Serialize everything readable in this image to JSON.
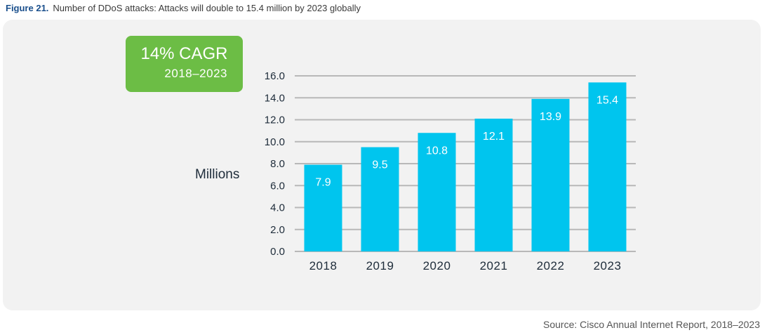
{
  "figure": {
    "label": "Figure 21.",
    "title": "Number of DDoS attacks: Attacks will double to 15.4 million by 2023 globally"
  },
  "callout": {
    "main": "14% CAGR",
    "sub": "2018–2023",
    "color": "#6cbd45"
  },
  "source": "Source: Cisco Annual Internet Report, 2018–2023",
  "chart_data": {
    "type": "bar",
    "title": "Number of DDoS attacks: Attacks will double to 15.4 million by 2023 globally",
    "xlabel": "",
    "ylabel": "Millions",
    "categories": [
      "2018",
      "2019",
      "2020",
      "2021",
      "2022",
      "2023"
    ],
    "values": [
      7.9,
      9.5,
      10.8,
      12.1,
      13.9,
      15.4
    ],
    "value_labels": [
      "7.9",
      "9.5",
      "10.8",
      "12.1",
      "13.9",
      "15.4"
    ],
    "ylim": [
      0,
      16
    ],
    "yticks": [
      "0.0",
      "2.0",
      "4.0",
      "6.0",
      "8.0",
      "10.0",
      "12.0",
      "14.0",
      "16.0"
    ],
    "grid": true,
    "bar_color": "#00c5ee",
    "grid_color": "#b8b8b8"
  }
}
